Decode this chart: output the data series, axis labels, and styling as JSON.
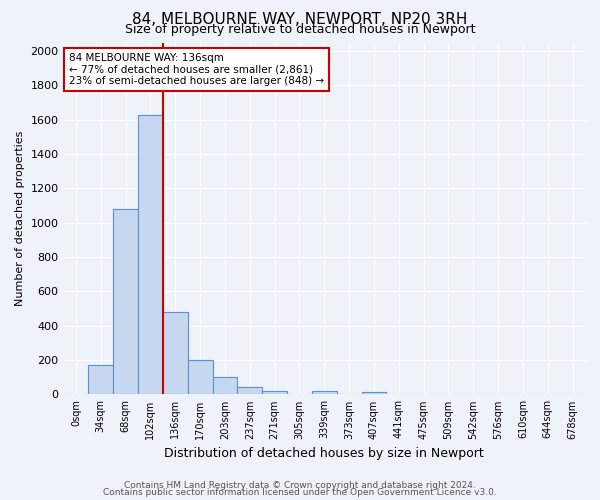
{
  "title": "84, MELBOURNE WAY, NEWPORT, NP20 3RH",
  "subtitle": "Size of property relative to detached houses in Newport",
  "xlabel": "Distribution of detached houses by size in Newport",
  "ylabel": "Number of detached properties",
  "bar_labels": [
    "0sqm",
    "34sqm",
    "68sqm",
    "102sqm",
    "136sqm",
    "170sqm",
    "203sqm",
    "237sqm",
    "271sqm",
    "305sqm",
    "339sqm",
    "373sqm",
    "407sqm",
    "441sqm",
    "475sqm",
    "509sqm",
    "542sqm",
    "576sqm",
    "610sqm",
    "644sqm",
    "678sqm"
  ],
  "bar_values": [
    0,
    170,
    1080,
    1625,
    480,
    200,
    100,
    45,
    20,
    5,
    20,
    0,
    15,
    0,
    0,
    0,
    0,
    0,
    0,
    0,
    0
  ],
  "bar_color": "#c5d8f0",
  "bar_edge_color": "#5b8fd4",
  "red_line_x": 3.5,
  "red_line_color": "#cc0000",
  "annotation_text": "84 MELBOURNE WAY: 136sqm\n← 77% of detached houses are smaller (2,861)\n23% of semi-detached houses are larger (848) →",
  "annotation_box_color": "#ffffff",
  "annotation_box_edge_color": "#cc0000",
  "ylim": [
    0,
    2050
  ],
  "yticks": [
    0,
    200,
    400,
    600,
    800,
    1000,
    1200,
    1400,
    1600,
    1800,
    2000
  ],
  "footnote1": "Contains HM Land Registry data © Crown copyright and database right 2024.",
  "footnote2": "Contains public sector information licensed under the Open Government Licence v3.0.",
  "bg_color": "#eef2f9",
  "plot_bg_color": "#eef2f9"
}
